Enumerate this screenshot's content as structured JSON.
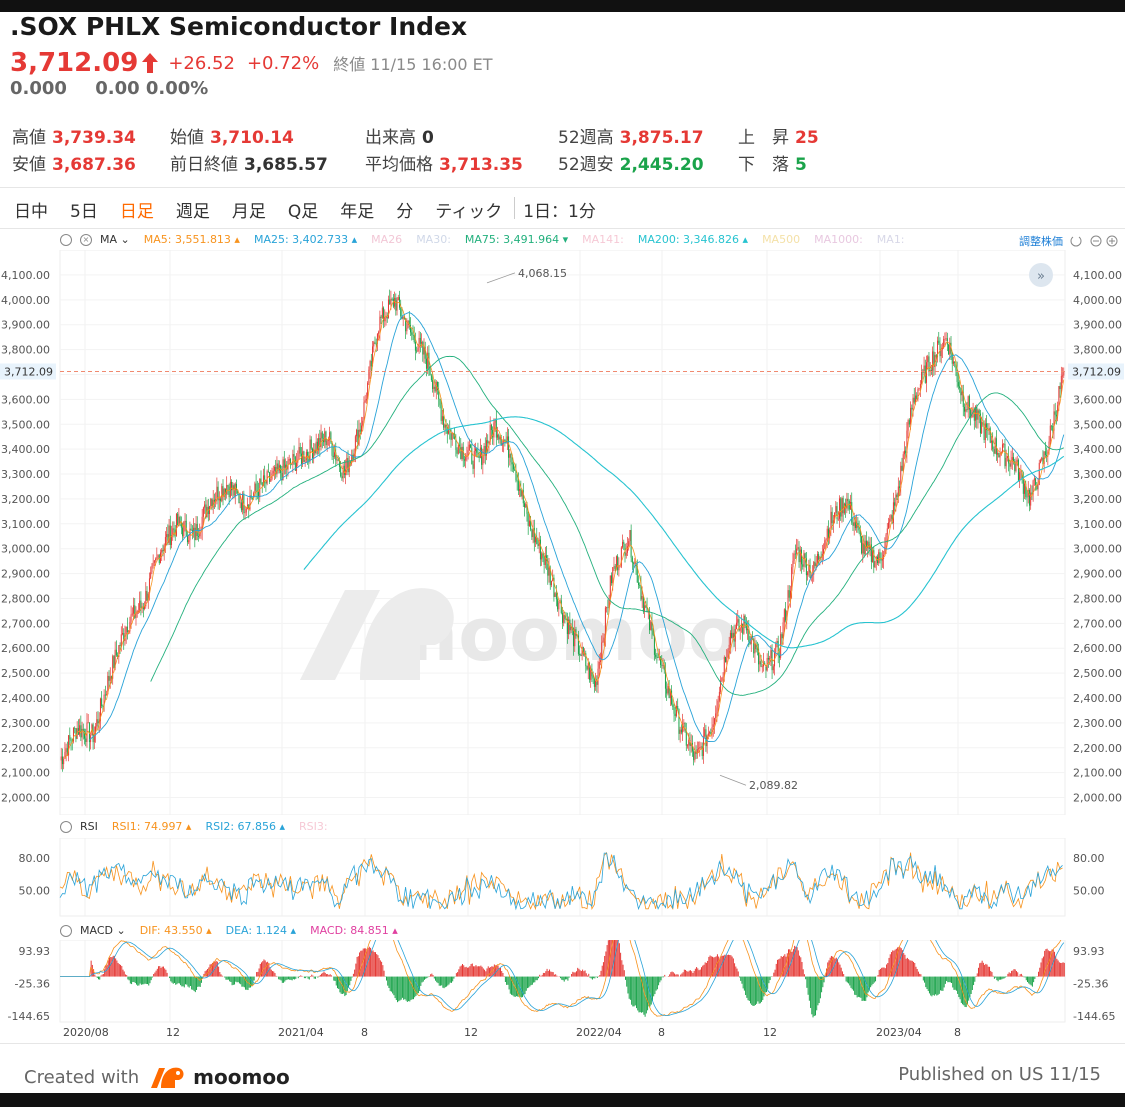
{
  "header": {
    "title": ".SOX PHLX Semiconductor Index",
    "price": "3,712.09",
    "change": "+26.52",
    "change_pct": "+0.72%",
    "status": "終値 11/15 16:00 ET",
    "after_price": "0.000",
    "after_change": "0.00 0.00%"
  },
  "stats": {
    "high_label": "高値",
    "high": "3,739.34",
    "low_label": "安値",
    "low": "3,687.36",
    "open_label": "始値",
    "open": "3,710.14",
    "prev_label": "前日終値",
    "prev": "3,685.57",
    "vol_label": "出来高",
    "vol": "0",
    "avg_label": "平均価格",
    "avg": "3,713.35",
    "w52h_label": "52週高",
    "w52h": "3,875.17",
    "w52l_label": "52週安",
    "w52l": "2,445.20",
    "adv_label": "上　昇",
    "adv": "25",
    "dec_label": "下　落",
    "dec": "5"
  },
  "tabs": [
    "日中",
    "5日",
    "日足",
    "週足",
    "月足",
    "Q足",
    "年足",
    "分",
    "ティック"
  ],
  "active_tab": "日足",
  "interval_label": "1日：1分",
  "ma_bar": {
    "name": "MA",
    "items": [
      {
        "label": "MA5:",
        "value": "3,551.813",
        "color": "#f7931e",
        "arrow": "up"
      },
      {
        "label": "MA25:",
        "value": "3,402.733",
        "color": "#29a3d8",
        "arrow": "up"
      },
      {
        "label": "MA26",
        "value": "",
        "color": "#f2c7d6",
        "arrow": ""
      },
      {
        "label": "MA30:",
        "value": "",
        "color": "#d0d8e8",
        "arrow": ""
      },
      {
        "label": "MA75:",
        "value": "3,491.964",
        "color": "#23b07d",
        "arrow": "down"
      },
      {
        "label": "MA141:",
        "value": "",
        "color": "#f6c9d5",
        "arrow": ""
      },
      {
        "label": "MA200:",
        "value": "3,346.826",
        "color": "#27c3d0",
        "arrow": "up"
      },
      {
        "label": "MA500",
        "value": "",
        "color": "#f4e1a8",
        "arrow": ""
      },
      {
        "label": "MA1000:",
        "value": "",
        "color": "#e8c8e0",
        "arrow": ""
      },
      {
        "label": "MA1:",
        "value": "",
        "color": "#d8d8e8",
        "arrow": ""
      }
    ],
    "adjust_label": "調整株価"
  },
  "rsi_bar": {
    "name": "RSI",
    "items": [
      {
        "label": "RSI1:",
        "value": "74.997",
        "color": "#f7931e"
      },
      {
        "label": "RSI2:",
        "value": "67.856",
        "color": "#29a3d8"
      },
      {
        "label": "RSI3:",
        "value": "",
        "color": "#f6c9d5"
      }
    ]
  },
  "macd_bar": {
    "name": "MACD",
    "items": [
      {
        "label": "DIF:",
        "value": "43.550",
        "color": "#f7931e"
      },
      {
        "label": "DEA:",
        "value": "1.124",
        "color": "#29a3d8"
      },
      {
        "label": "MACD:",
        "value": "84.851",
        "color": "#e040a0"
      }
    ]
  },
  "chart_data": {
    "type": "line",
    "title": ".SOX PHLX Semiconductor Index",
    "y_ticks": [
      2000,
      2100,
      2200,
      2300,
      2400,
      2500,
      2600,
      2700,
      2800,
      2900,
      3000,
      3100,
      3200,
      3300,
      3400,
      3500,
      3600,
      3700,
      3800,
      3900,
      4000,
      4100
    ],
    "ylim": [
      1950,
      4160
    ],
    "current_price_label": "3,712.09",
    "annotations": [
      {
        "text": "4,068.15",
        "x": "2021/12",
        "y": 4068.15
      },
      {
        "text": "2,089.82",
        "x": "2022/10",
        "y": 2089.82
      }
    ],
    "x_tick_labels": [
      "2020/08",
      "12",
      "2021/04",
      "8",
      "12",
      "2022/04",
      "8",
      "12",
      "2023/04",
      "8"
    ],
    "price_series": {
      "name": "Close",
      "values": [
        2150,
        2280,
        2250,
        2500,
        2700,
        2780,
        3000,
        3100,
        3050,
        3200,
        3260,
        3180,
        3250,
        3300,
        3350,
        3400,
        3450,
        3300,
        3500,
        3900,
        4000,
        3860,
        3750,
        3500,
        3400,
        3350,
        3500,
        3380,
        3100,
        2950,
        2750,
        2600,
        2450,
        2900,
        3050,
        2750,
        2500,
        2300,
        2150,
        2300,
        2650,
        2700,
        2500,
        2600,
        3000,
        2900,
        3100,
        3200,
        3000,
        2950,
        3200,
        3600,
        3750,
        3850,
        3600,
        3500,
        3400,
        3350,
        3200,
        3400,
        3712
      ]
    },
    "ma_series": [
      {
        "name": "MA5",
        "color": "#f7931e"
      },
      {
        "name": "MA25",
        "color": "#29a3d8"
      },
      {
        "name": "MA75",
        "color": "#23b07d"
      },
      {
        "name": "MA200",
        "color": "#27c3d0"
      }
    ],
    "rsi": {
      "y_ticks": [
        50,
        80
      ],
      "ylim": [
        30,
        95
      ]
    },
    "macd": {
      "y_ticks": [
        93.93,
        -25.36,
        -144.65
      ],
      "ylim": [
        -160,
        120
      ]
    }
  },
  "footer": {
    "created_with": "Created with",
    "brand": "moomoo",
    "published": "Published on US 11/15"
  },
  "watermark": "moomoo",
  "colors": {
    "up": "#e53935",
    "down": "#1aa34a",
    "accent": "#ff6a00"
  }
}
